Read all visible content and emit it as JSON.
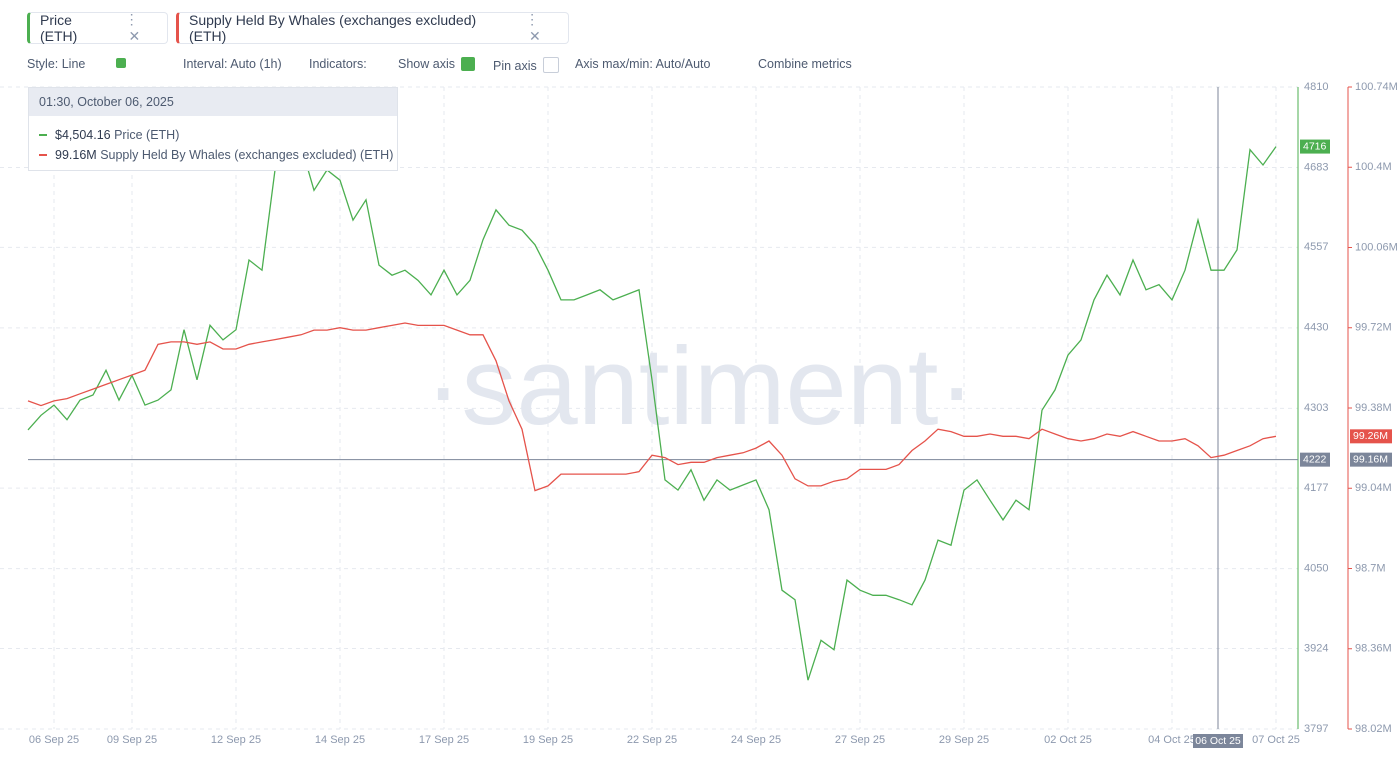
{
  "toolbar": {
    "style": "Style: Line",
    "interval": "Interval: Auto (1h)",
    "indicators": "Indicators:",
    "show_axis": "Show axis",
    "pin_axis": "Pin axis",
    "axis_minmax": "Axis max/min: Auto/Auto",
    "combine": "Combine metrics"
  },
  "watermark": "·santiment·",
  "tooltip": {
    "time": "01:30, October 06, 2025",
    "items": [
      {
        "value": 4504.16,
        "label": "$4,504.16"
      },
      {
        "value": 99.16,
        "label": "99.16M"
      }
    ]
  },
  "crosshair": {
    "x_label": "06 Oct 25",
    "price": 4222
  },
  "chart_data": {
    "type": "line",
    "grid": true,
    "categories": [
      null,
      null,
      "06 Sep 25",
      null,
      null,
      null,
      null,
      null,
      "09 Sep 25",
      null,
      null,
      null,
      null,
      null,
      null,
      null,
      "12 Sep 25",
      null,
      null,
      null,
      null,
      null,
      null,
      null,
      "14 Sep 25",
      null,
      null,
      null,
      null,
      null,
      null,
      null,
      "17 Sep 25",
      null,
      null,
      null,
      null,
      null,
      null,
      null,
      "19 Sep 25",
      null,
      null,
      null,
      null,
      null,
      null,
      null,
      "22 Sep 25",
      null,
      null,
      null,
      null,
      null,
      null,
      null,
      "24 Sep 25",
      null,
      null,
      null,
      null,
      null,
      null,
      null,
      "27 Sep 25",
      null,
      null,
      null,
      null,
      null,
      null,
      null,
      "29 Sep 25",
      null,
      null,
      null,
      null,
      null,
      null,
      null,
      "02 Oct 25",
      null,
      null,
      null,
      null,
      null,
      null,
      null,
      "04 Oct 25",
      null,
      null,
      null,
      null,
      null,
      null,
      null,
      "07 Oct 25"
    ],
    "ylim": [
      3797,
      4810
    ],
    "yticks": [
      3797,
      3924,
      4050,
      4177,
      4303,
      4430,
      4557,
      4683,
      4810
    ],
    "y2lim": [
      98.02,
      100.74
    ],
    "y2ticks": [
      {
        "value": 98.02,
        "label": "98.02M"
      },
      {
        "value": 98.36,
        "label": "98.36M"
      },
      {
        "value": 98.7,
        "label": "98.7M"
      },
      {
        "value": 99.04,
        "label": "99.04M"
      },
      {
        "value": 99.38,
        "label": "99.38M"
      },
      {
        "value": 99.72,
        "label": "99.72M"
      },
      {
        "value": 100.06,
        "label": "100.06M"
      },
      {
        "value": 100.4,
        "label": "100.4M"
      },
      {
        "value": 100.74,
        "label": "100.74M"
      }
    ],
    "series": [
      {
        "name": "Price (ETH)",
        "color": "#4caf50",
        "values": [
          4269,
          4292,
          4308,
          4285,
          4316,
          4324,
          4363,
          4316,
          4355,
          4308,
          4316,
          4332,
          4427,
          4348,
          4434,
          4411,
          4427,
          4537,
          4521,
          4679,
          4742,
          4718,
          4647,
          4679,
          4663,
          4600,
          4632,
          4529,
          4513,
          4521,
          4505,
          4482,
          4521,
          4482,
          4505,
          4569,
          4616,
          4592,
          4584,
          4561,
          4521,
          4474,
          4474,
          4482,
          4490,
          4474,
          4482,
          4490,
          4348,
          4190,
          4174,
          4206,
          4158,
          4190,
          4174,
          4182,
          4190,
          4143,
          4016,
          4001,
          3874,
          3937,
          3922,
          4032,
          4016,
          4008,
          4008,
          4001,
          3993,
          4032,
          4095,
          4087,
          4174,
          4190,
          4158,
          4127,
          4158,
          4143,
          4300,
          4332,
          4387,
          4411,
          4474,
          4513,
          4482,
          4537,
          4490,
          4498,
          4474,
          4521,
          4600,
          4521,
          4521,
          4553,
          4711,
          4687,
          4716
        ]
      },
      {
        "name": "Supply Held By Whales (exchanges excluded) (ETH)",
        "color": "#e5534b",
        "axis": "y2",
        "last_label": "99.26M",
        "values": [
          99.41,
          99.39,
          99.41,
          99.42,
          99.44,
          99.46,
          99.48,
          99.5,
          99.52,
          99.54,
          99.65,
          99.66,
          99.66,
          99.65,
          99.66,
          99.63,
          99.63,
          99.65,
          99.66,
          99.67,
          99.68,
          99.69,
          99.71,
          99.71,
          99.72,
          99.71,
          99.71,
          99.72,
          99.73,
          99.74,
          99.73,
          99.73,
          99.73,
          99.71,
          99.69,
          99.69,
          99.58,
          99.41,
          99.29,
          99.03,
          99.05,
          99.1,
          99.1,
          99.1,
          99.1,
          99.1,
          99.1,
          99.11,
          99.18,
          99.17,
          99.14,
          99.15,
          99.15,
          99.17,
          99.18,
          99.19,
          99.21,
          99.24,
          99.18,
          99.08,
          99.05,
          99.05,
          99.07,
          99.08,
          99.12,
          99.12,
          99.12,
          99.14,
          99.2,
          99.24,
          99.29,
          99.28,
          99.26,
          99.26,
          99.27,
          99.26,
          99.26,
          99.25,
          99.29,
          99.27,
          99.25,
          99.24,
          99.25,
          99.27,
          99.26,
          99.28,
          99.26,
          99.24,
          99.24,
          99.25,
          99.22,
          99.17,
          99.18,
          99.2,
          99.22,
          99.25,
          99.26
        ]
      }
    ]
  }
}
